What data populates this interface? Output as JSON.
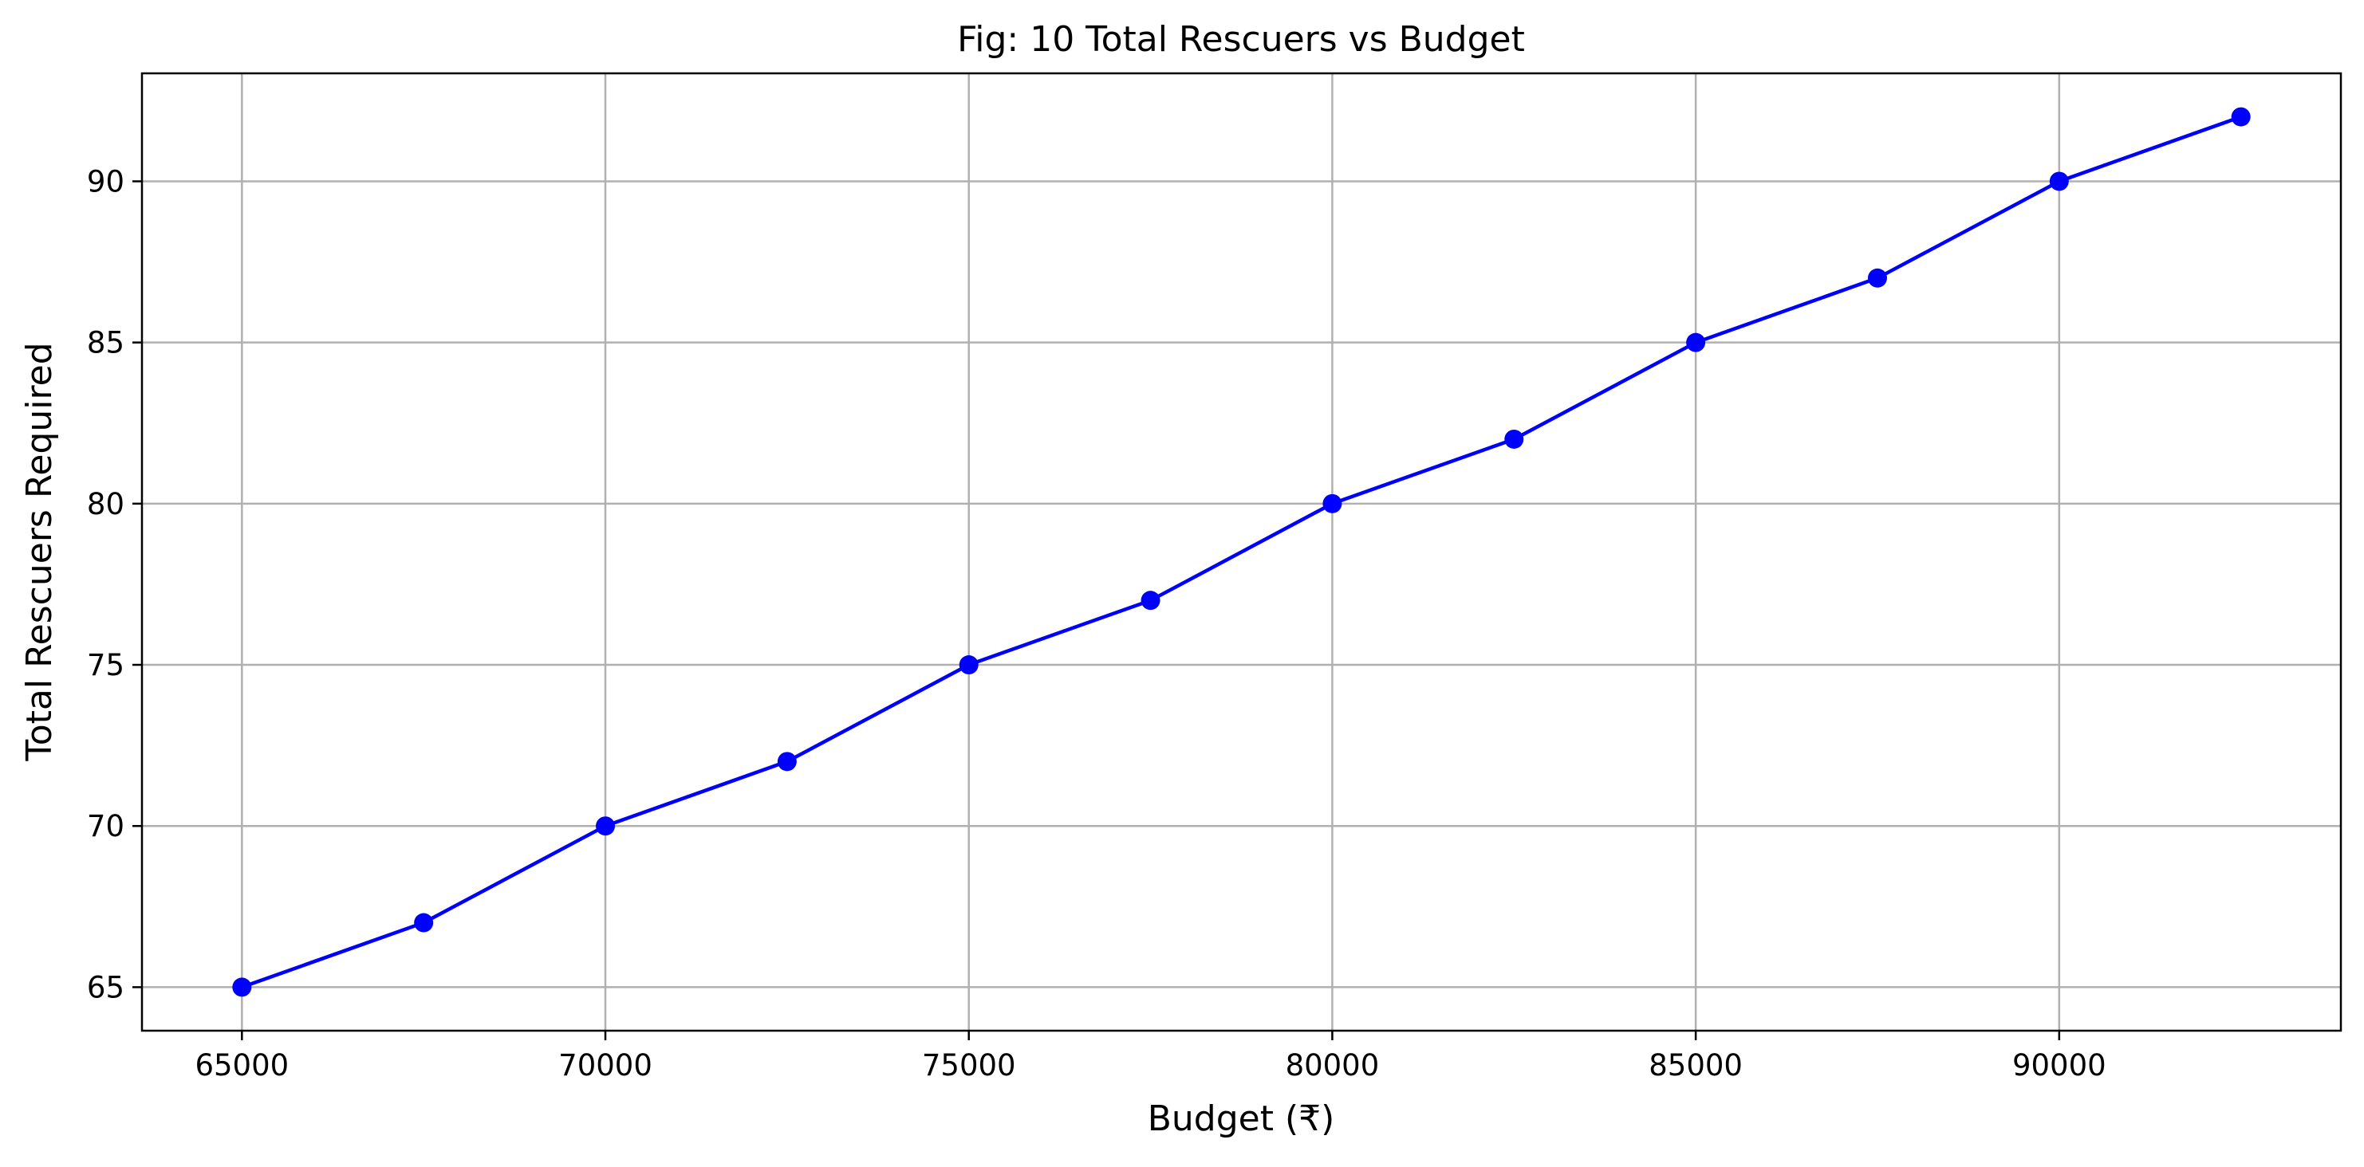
{
  "chart_data": {
    "type": "line",
    "title": "Fig: 10  Total Rescuers vs Budget",
    "xlabel": "Budget (₹)",
    "ylabel": "Total Rescuers Required",
    "xlim": [
      63625,
      93875
    ],
    "ylim": [
      63.65,
      93.35
    ],
    "x_ticks": [
      65000,
      70000,
      75000,
      80000,
      85000,
      90000
    ],
    "y_ticks": [
      65,
      70,
      75,
      80,
      85,
      90
    ],
    "grid": true,
    "series": [
      {
        "color": "#0000ff",
        "marker": "circle",
        "x": [
          65000,
          67500,
          70000,
          72500,
          75000,
          77500,
          80000,
          82500,
          85000,
          87500,
          90000,
          92500
        ],
        "y": [
          65,
          67,
          70,
          72,
          75,
          77,
          80,
          82,
          85,
          87,
          90,
          92
        ]
      }
    ]
  }
}
